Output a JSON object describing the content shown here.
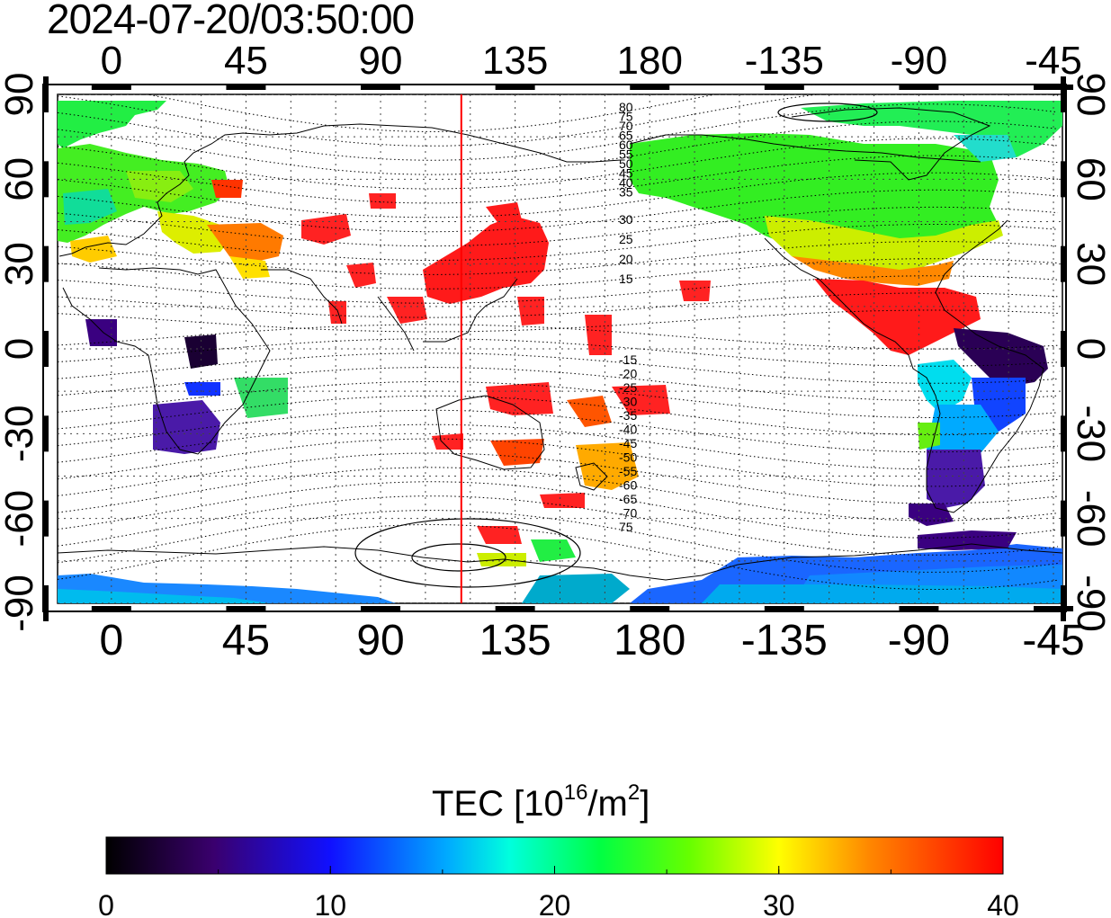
{
  "title": "2024-07-20/03:50:00",
  "map": {
    "x_ticks_labels": [
      "0",
      "45",
      "90",
      "135",
      "180",
      "-135",
      "-90",
      "-45"
    ],
    "x_ticks_lon": [
      0,
      45,
      90,
      135,
      180,
      225,
      270,
      315
    ],
    "y_ticks_labels": [
      "90",
      "60",
      "30",
      "0",
      "-30",
      "-60",
      "-90"
    ],
    "y_ticks_lat": [
      90,
      60,
      30,
      0,
      -30,
      -60,
      -90
    ],
    "lon_range": [
      -18,
      318
    ],
    "lat_range": [
      -90,
      90
    ],
    "grid": true,
    "marker_lon": 117,
    "marker_color": "#ff0000",
    "contour_labels_north": [
      "80",
      "75",
      "70",
      "65",
      "60",
      "55",
      "50",
      "45",
      "40",
      "35",
      "30",
      "25",
      "20",
      "15"
    ],
    "contour_labels_south": [
      "-15",
      "-20",
      "-25",
      "-30",
      "-35",
      "-40",
      "-45",
      "-50",
      "-55",
      "-60",
      "-65",
      "-70",
      "75"
    ]
  },
  "colorbar": {
    "title_prefix": "TEC  [10",
    "title_exp1": "16",
    "title_mid": "/m",
    "title_exp2": "2",
    "title_suffix": "]",
    "min": 0,
    "max": 40,
    "tick_labels": [
      "0",
      "10",
      "20",
      "30",
      "40"
    ],
    "tick_values": [
      0,
      10,
      20,
      30,
      40
    ]
  }
}
